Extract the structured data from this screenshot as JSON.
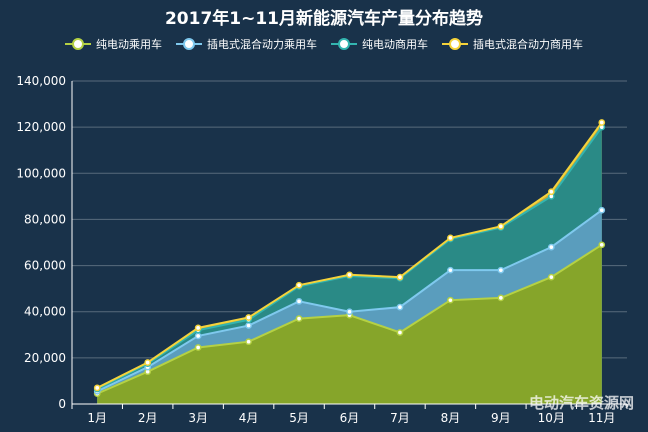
{
  "chart_data": {
    "type": "area",
    "title": "2017年1~11月新能源汽车产量分布趋势",
    "categories": [
      "1月",
      "2月",
      "3月",
      "4月",
      "5月",
      "6月",
      "7月",
      "8月",
      "9月",
      "10月",
      "11月"
    ],
    "stacked": true,
    "series": [
      {
        "name": "纯电动乘用车",
        "color": "#b5d144",
        "fill": "#86a52a",
        "values": [
          4500,
          14000,
          24500,
          27000,
          37000,
          38500,
          31000,
          45000,
          46000,
          55000,
          69000
        ]
      },
      {
        "name": "插电式混合动力乘用车",
        "color": "#7fc9ee",
        "fill": "#5a9dbd",
        "values": [
          1000,
          2000,
          5000,
          7000,
          7500,
          1500,
          11000,
          13000,
          12000,
          13000,
          15000
        ]
      },
      {
        "name": "纯电动商用车",
        "color": "#33b5b0",
        "fill": "#2a8a86",
        "values": [
          1000,
          1500,
          2500,
          2500,
          6500,
          15500,
          12500,
          13500,
          18500,
          22000,
          36000
        ]
      },
      {
        "name": "插电式混合动力商用车",
        "color": "#f5d33a",
        "fill": "#c9a83a",
        "values": [
          500,
          500,
          1000,
          1000,
          500,
          500,
          500,
          500,
          500,
          2000,
          2000
        ]
      }
    ],
    "xlabel": "",
    "ylabel": "",
    "ylim": [
      0,
      140000
    ],
    "yticks": [
      "0",
      "20,000",
      "40,000",
      "60,000",
      "80,000",
      "100,000",
      "120,000",
      "140,000"
    ],
    "grid": true,
    "legend_position": "top"
  },
  "watermark": "电动汽车资源网"
}
